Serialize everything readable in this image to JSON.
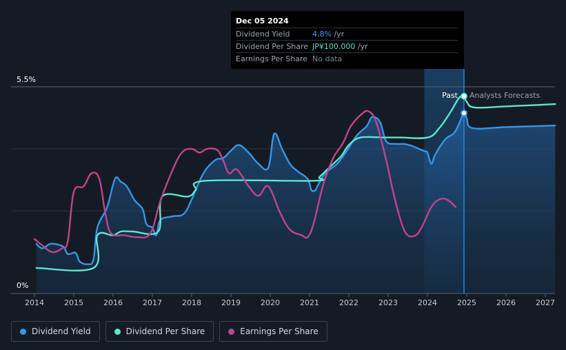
{
  "tooltip": {
    "date": "Dec 05 2024",
    "rows": [
      {
        "label": "Dividend Yield",
        "value": "4.8%",
        "unit": " /yr",
        "color": "#3ca0ff"
      },
      {
        "label": "Dividend Per Share",
        "value": "JP¥100.000",
        "unit": " /yr",
        "color": "#5be0c8"
      },
      {
        "label": "Earnings Per Share",
        "value": "No data",
        "unit": "",
        "color": "#7d848c"
      }
    ]
  },
  "legend": [
    {
      "label": "Dividend Yield",
      "color": "#3497e6"
    },
    {
      "label": "Dividend Per Share",
      "color": "#5ce6cf"
    },
    {
      "label": "Earnings Per Share",
      "color": "#c2448a"
    }
  ],
  "chart_data": {
    "type": "line",
    "ylim": [
      0,
      5.5
    ],
    "y_tick_labels": [
      "5.5%",
      "0%"
    ],
    "x_ticks": [
      "2014",
      "2015",
      "2016",
      "2017",
      "2018",
      "2019",
      "2020",
      "2021",
      "2022",
      "2023",
      "2024",
      "2025",
      "2026",
      "2027"
    ],
    "xlim": [
      2013.97,
      2027.25
    ],
    "past_label": "Past",
    "forecast_label": "Analysts Forecasts",
    "forecast_start": 2023.92,
    "now": 2024.93,
    "series": [
      {
        "name": "Dividend Yield",
        "color": "#3497e6",
        "area": true,
        "points": [
          [
            2014.05,
            1.32
          ],
          [
            2014.2,
            1.2
          ],
          [
            2014.4,
            1.32
          ],
          [
            2014.6,
            1.3
          ],
          [
            2014.75,
            1.23
          ],
          [
            2014.85,
            1.05
          ],
          [
            2015.05,
            1.08
          ],
          [
            2015.15,
            0.85
          ],
          [
            2015.35,
            0.78
          ],
          [
            2015.5,
            0.9
          ],
          [
            2015.6,
            1.75
          ],
          [
            2015.85,
            2.3
          ],
          [
            2016.05,
            3.05
          ],
          [
            2016.2,
            2.97
          ],
          [
            2016.35,
            2.85
          ],
          [
            2016.55,
            2.48
          ],
          [
            2016.75,
            2.25
          ],
          [
            2016.85,
            1.85
          ],
          [
            2017.0,
            1.75
          ],
          [
            2017.1,
            1.55
          ],
          [
            2017.2,
            1.95
          ],
          [
            2017.5,
            2.05
          ],
          [
            2017.8,
            2.12
          ],
          [
            2018.0,
            2.5
          ],
          [
            2018.3,
            3.2
          ],
          [
            2018.6,
            3.55
          ],
          [
            2018.8,
            3.6
          ],
          [
            2019.0,
            3.8
          ],
          [
            2019.2,
            3.95
          ],
          [
            2019.45,
            3.75
          ],
          [
            2019.7,
            3.45
          ],
          [
            2019.95,
            3.35
          ],
          [
            2020.1,
            4.25
          ],
          [
            2020.3,
            3.85
          ],
          [
            2020.5,
            3.45
          ],
          [
            2020.7,
            3.25
          ],
          [
            2020.95,
            3.05
          ],
          [
            2021.05,
            2.75
          ],
          [
            2021.15,
            2.75
          ],
          [
            2021.2,
            2.85
          ],
          [
            2021.4,
            3.2
          ],
          [
            2021.7,
            3.45
          ],
          [
            2021.95,
            3.8
          ],
          [
            2022.2,
            4.2
          ],
          [
            2022.45,
            4.45
          ],
          [
            2022.6,
            4.7
          ],
          [
            2022.8,
            4.55
          ],
          [
            2022.95,
            4.05
          ],
          [
            2023.2,
            3.98
          ],
          [
            2023.4,
            3.98
          ],
          [
            2023.6,
            3.93
          ],
          [
            2023.85,
            3.82
          ],
          [
            2023.95,
            3.78
          ],
          [
            2024.0,
            3.75
          ],
          [
            2024.1,
            3.45
          ],
          [
            2024.2,
            3.7
          ],
          [
            2024.45,
            4.1
          ],
          [
            2024.7,
            4.3
          ],
          [
            2024.93,
            4.8
          ],
          [
            2025.0,
            4.65
          ],
          [
            2025.15,
            4.4
          ],
          [
            2026.0,
            4.43
          ],
          [
            2027.25,
            4.47
          ]
        ]
      },
      {
        "name": "Dividend Per Share",
        "color": "#5ce6cf",
        "area": false,
        "points": [
          [
            2014.05,
            0.68
          ],
          [
            2015.5,
            0.68
          ],
          [
            2015.6,
            1.55
          ],
          [
            2016.0,
            1.55
          ],
          [
            2016.2,
            1.65
          ],
          [
            2016.5,
            1.65
          ],
          [
            2017.15,
            1.65
          ],
          [
            2017.25,
            2.58
          ],
          [
            2017.9,
            2.58
          ],
          [
            2018.1,
            2.75
          ],
          [
            2018.35,
            3.0
          ],
          [
            2021.1,
            3.0
          ],
          [
            2021.25,
            3.1
          ],
          [
            2021.5,
            3.35
          ],
          [
            2021.8,
            3.65
          ],
          [
            2022.0,
            3.95
          ],
          [
            2022.3,
            4.15
          ],
          [
            2022.9,
            4.15
          ],
          [
            2023.3,
            4.15
          ],
          [
            2024.0,
            4.15
          ],
          [
            2024.3,
            4.4
          ],
          [
            2024.6,
            4.85
          ],
          [
            2024.8,
            5.2
          ],
          [
            2024.93,
            5.25
          ],
          [
            2025.0,
            5.1
          ],
          [
            2025.2,
            4.95
          ],
          [
            2026.0,
            4.98
          ],
          [
            2027.25,
            5.04
          ]
        ]
      },
      {
        "name": "Earnings Per Share",
        "color": "#c2448a",
        "area": false,
        "points": [
          [
            2014.0,
            1.45
          ],
          [
            2014.2,
            1.28
          ],
          [
            2014.45,
            1.1
          ],
          [
            2014.7,
            1.2
          ],
          [
            2014.85,
            1.4
          ],
          [
            2015.0,
            2.7
          ],
          [
            2015.25,
            2.85
          ],
          [
            2015.45,
            3.2
          ],
          [
            2015.65,
            3.05
          ],
          [
            2015.8,
            2.15
          ],
          [
            2015.95,
            1.6
          ],
          [
            2016.3,
            1.55
          ],
          [
            2016.6,
            1.5
          ],
          [
            2016.95,
            1.6
          ],
          [
            2017.2,
            2.45
          ],
          [
            2017.5,
            3.25
          ],
          [
            2017.75,
            3.75
          ],
          [
            2018.0,
            3.85
          ],
          [
            2018.2,
            3.75
          ],
          [
            2018.4,
            3.85
          ],
          [
            2018.65,
            3.82
          ],
          [
            2018.8,
            3.55
          ],
          [
            2018.95,
            3.2
          ],
          [
            2019.15,
            3.3
          ],
          [
            2019.45,
            2.85
          ],
          [
            2019.7,
            2.6
          ],
          [
            2019.95,
            2.85
          ],
          [
            2020.25,
            2.15
          ],
          [
            2020.5,
            1.7
          ],
          [
            2020.8,
            1.55
          ],
          [
            2020.95,
            1.5
          ],
          [
            2021.1,
            1.85
          ],
          [
            2021.35,
            2.9
          ],
          [
            2021.6,
            3.6
          ],
          [
            2021.85,
            4.0
          ],
          [
            2022.05,
            4.45
          ],
          [
            2022.3,
            4.75
          ],
          [
            2022.5,
            4.85
          ],
          [
            2022.7,
            4.55
          ],
          [
            2022.95,
            3.55
          ],
          [
            2023.15,
            2.6
          ],
          [
            2023.35,
            1.85
          ],
          [
            2023.5,
            1.55
          ],
          [
            2023.7,
            1.55
          ],
          [
            2023.85,
            1.75
          ],
          [
            2024.1,
            2.3
          ],
          [
            2024.3,
            2.5
          ],
          [
            2024.5,
            2.5
          ],
          [
            2024.72,
            2.3
          ]
        ]
      }
    ]
  }
}
